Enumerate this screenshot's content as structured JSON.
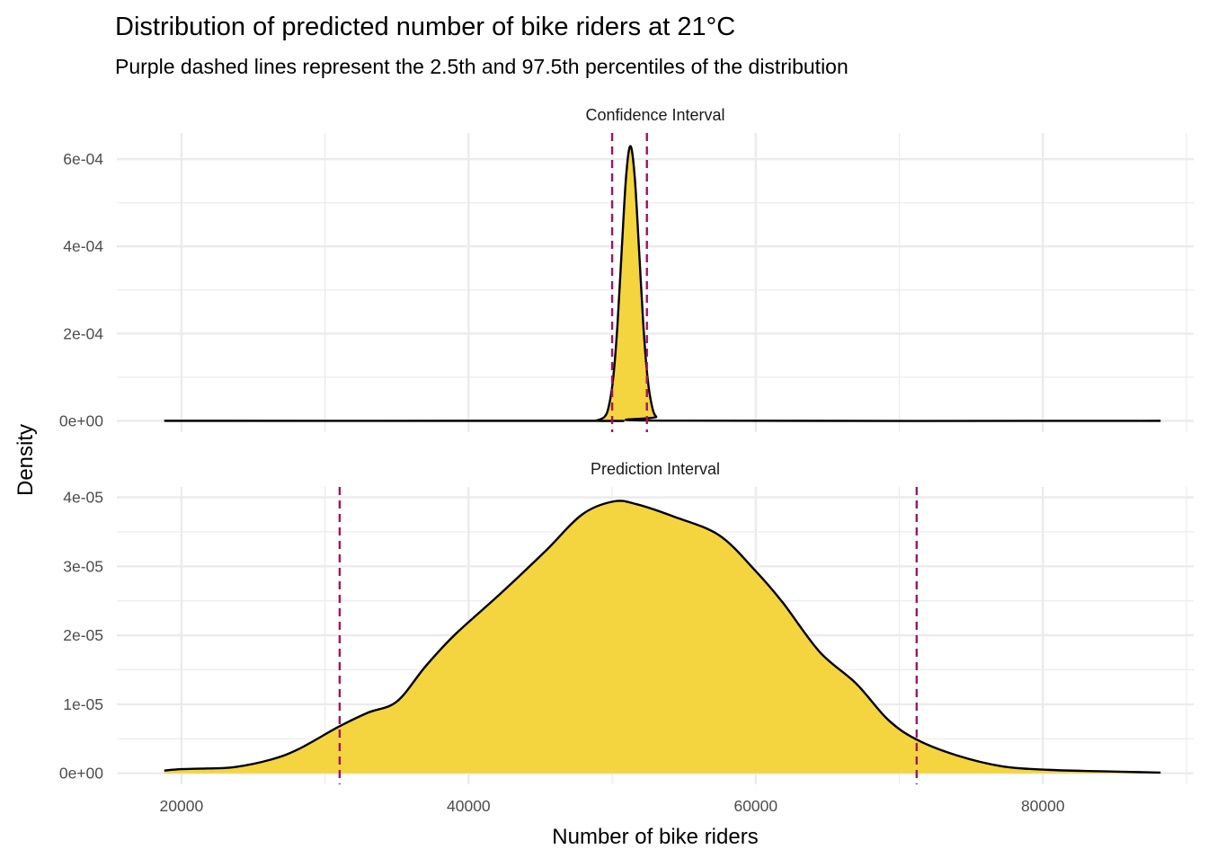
{
  "chart_data": [
    {
      "type": "area",
      "title": "Distribution of predicted number of bike riders at 21°C",
      "subtitle": "Purple dashed lines represent the 2.5th and 97.5th percentiles of the distribution",
      "xlabel": "Number of bike riders",
      "ylabel": "Density",
      "panel": "Confidence Interval",
      "xlim": [
        15500,
        90500
      ],
      "ylim": [
        -2.6e-05,
        0.00066
      ],
      "x_ticks": [
        20000,
        40000,
        60000,
        80000
      ],
      "x_tick_labels": [
        "20000",
        "40000",
        "60000",
        "80000"
      ],
      "y_ticks": [
        0,
        0.0002,
        0.0004,
        0.0006
      ],
      "y_tick_labels": [
        "0e+00",
        "2e-04",
        "4e-04",
        "6e-04"
      ],
      "percentile_lines": [
        50000,
        52420
      ],
      "x": [
        18800,
        48500,
        48870,
        49470,
        49770,
        50070,
        50370,
        50670,
        50970,
        51270,
        51570,
        51870,
        52170,
        52470,
        52770,
        53070,
        53670,
        88200
      ],
      "y": [
        0,
        0,
        4e-07,
        9.3e-06,
        3.4e-05,
        9.7e-05,
        0.00022,
        0.000394,
        0.00056,
        0.00063,
        0.00056,
        0.000394,
        0.00022,
        9.7e-05,
        3.4e-05,
        9.3e-06,
        4e-07,
        0
      ],
      "grid": true
    },
    {
      "type": "area",
      "panel": "Prediction Interval",
      "xlabel": "Number of bike riders",
      "ylabel": "Density",
      "xlim": [
        15500,
        90500
      ],
      "ylim": [
        -1.6e-06,
        4.15e-05
      ],
      "x_ticks": [
        20000,
        40000,
        60000,
        80000
      ],
      "x_tick_labels": [
        "20000",
        "40000",
        "60000",
        "80000"
      ],
      "y_ticks": [
        0,
        1e-05,
        2e-05,
        3e-05,
        4e-05
      ],
      "y_tick_labels": [
        "0e+00",
        "1e-05",
        "2e-05",
        "3e-05",
        "4e-05"
      ],
      "percentile_lines": [
        31020,
        71210
      ],
      "x": [
        18800,
        20000,
        21800,
        23700,
        26250,
        28150,
        31000,
        33000,
        35000,
        37000,
        39000,
        42200,
        45350,
        47900,
        50100,
        51700,
        54300,
        57450,
        60000,
        61900,
        64450,
        67000,
        69200,
        71200,
        74000,
        77200,
        80400,
        84000,
        88200
      ],
      "y": [
        4e-07,
        6e-07,
        7e-07,
        9e-07,
        2e-06,
        3.5e-06,
        6.8e-06,
        8.8e-06,
        1.04e-05,
        1.55e-05,
        2e-05,
        2.6e-05,
        3.22e-05,
        3.75e-05,
        3.94e-05,
        3.9e-05,
        3.72e-05,
        3.45e-05,
        2.93e-05,
        2.47e-05,
        1.76e-05,
        1.3e-05,
        7.8e-06,
        4.9e-06,
        2.6e-06,
        1e-06,
        5e-07,
        3e-07,
        1e-07
      ],
      "grid": true
    }
  ],
  "colors": {
    "fill": "#F4D43F",
    "line": "#000000",
    "percentile": "#A0145E",
    "grid": "#EBEBEB",
    "tick_text": "#4D4D4D"
  }
}
